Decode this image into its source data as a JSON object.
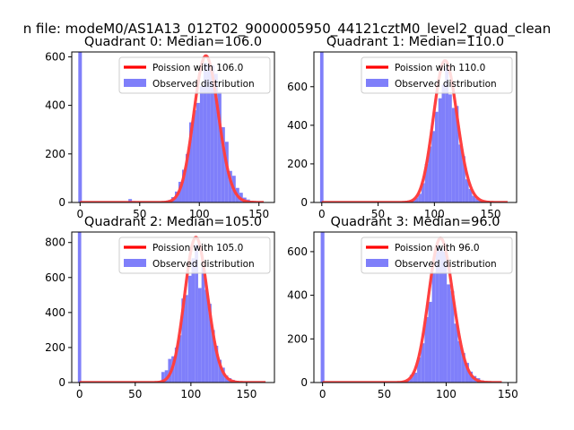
{
  "suptitle": "n file: modeM0/AS1A13_012T02_9000005950_44121cztM0_level2_quad_clean",
  "colors": {
    "poisson": "#ff0000",
    "observed": "#7f7ffa",
    "axis": "#000000",
    "background": "#ffffff"
  },
  "chart_data": [
    {
      "type": "bar",
      "title": "Quadrant 0: Median=106.0",
      "median": 106.0,
      "xlim": [
        -7,
        163
      ],
      "ylim": [
        0,
        620
      ],
      "xticks": [
        0,
        50,
        100,
        150
      ],
      "xtick_labels": [
        "0",
        "50",
        "100",
        "150"
      ],
      "yticks": [
        0,
        200,
        400,
        600
      ],
      "ytick_labels": [
        "0",
        "200",
        "400",
        "600"
      ],
      "legend": [
        "Poission with 106.0",
        "Observed distribution"
      ],
      "legend_position": "top-right",
      "observed": {
        "bin_width": 3,
        "bins": [
          {
            "x": 0,
            "value": 620
          },
          {
            "x": 39,
            "value": 4
          },
          {
            "x": 42,
            "value": 14
          },
          {
            "x": 45,
            "value": 6
          },
          {
            "x": 57,
            "value": 3
          },
          {
            "x": 60,
            "value": 2
          },
          {
            "x": 63,
            "value": 3
          },
          {
            "x": 66,
            "value": 3
          },
          {
            "x": 69,
            "value": 4
          },
          {
            "x": 72,
            "value": 6
          },
          {
            "x": 75,
            "value": 10
          },
          {
            "x": 78,
            "value": 22
          },
          {
            "x": 81,
            "value": 45
          },
          {
            "x": 84,
            "value": 85
          },
          {
            "x": 87,
            "value": 135
          },
          {
            "x": 90,
            "value": 200
          },
          {
            "x": 93,
            "value": 330
          },
          {
            "x": 96,
            "value": 380
          },
          {
            "x": 99,
            "value": 410
          },
          {
            "x": 102,
            "value": 480
          },
          {
            "x": 105,
            "value": 575
          },
          {
            "x": 108,
            "value": 570
          },
          {
            "x": 111,
            "value": 565
          },
          {
            "x": 114,
            "value": 530
          },
          {
            "x": 117,
            "value": 455
          },
          {
            "x": 120,
            "value": 310
          },
          {
            "x": 123,
            "value": 250
          },
          {
            "x": 126,
            "value": 130
          },
          {
            "x": 129,
            "value": 110
          },
          {
            "x": 132,
            "value": 60
          },
          {
            "x": 135,
            "value": 40
          },
          {
            "x": 138,
            "value": 20
          },
          {
            "x": 141,
            "value": 12
          },
          {
            "x": 144,
            "value": 6
          },
          {
            "x": 147,
            "value": 3
          }
        ]
      },
      "poisson": {
        "mean": 106.0,
        "x_range": [
          0,
          154
        ]
      }
    },
    {
      "type": "bar",
      "title": "Quadrant 1: Median=110.0",
      "median": 110.0,
      "xlim": [
        -7,
        173
      ],
      "ylim": [
        0,
        780
      ],
      "xticks": [
        0,
        50,
        100,
        150
      ],
      "xtick_labels": [
        "0",
        "50",
        "100",
        "150"
      ],
      "yticks": [
        0,
        200,
        400,
        600
      ],
      "ytick_labels": [
        "0",
        "200",
        "400",
        "600"
      ],
      "legend": [
        "Poission with 110.0",
        "Observed distribution"
      ],
      "legend_position": "top-right",
      "observed": {
        "bin_width": 3,
        "bins": [
          {
            "x": 0,
            "value": 780
          },
          {
            "x": 66,
            "value": 3
          },
          {
            "x": 69,
            "value": 4
          },
          {
            "x": 72,
            "value": 5
          },
          {
            "x": 75,
            "value": 8
          },
          {
            "x": 78,
            "value": 10
          },
          {
            "x": 81,
            "value": 15
          },
          {
            "x": 84,
            "value": 25
          },
          {
            "x": 87,
            "value": 45
          },
          {
            "x": 90,
            "value": 100
          },
          {
            "x": 93,
            "value": 200
          },
          {
            "x": 96,
            "value": 290
          },
          {
            "x": 99,
            "value": 370
          },
          {
            "x": 102,
            "value": 470
          },
          {
            "x": 105,
            "value": 540
          },
          {
            "x": 108,
            "value": 610
          },
          {
            "x": 111,
            "value": 700
          },
          {
            "x": 114,
            "value": 560
          },
          {
            "x": 117,
            "value": 490
          },
          {
            "x": 120,
            "value": 500
          },
          {
            "x": 123,
            "value": 300
          },
          {
            "x": 126,
            "value": 240
          },
          {
            "x": 129,
            "value": 120
          },
          {
            "x": 132,
            "value": 70
          },
          {
            "x": 135,
            "value": 35
          },
          {
            "x": 138,
            "value": 20
          },
          {
            "x": 141,
            "value": 15
          },
          {
            "x": 144,
            "value": 10
          },
          {
            "x": 147,
            "value": 6
          },
          {
            "x": 150,
            "value": 3
          }
        ]
      },
      "poisson": {
        "mean": 110.0,
        "x_range": [
          0,
          165
        ]
      }
    },
    {
      "type": "bar",
      "title": "Quadrant 2: Median=105.0",
      "median": 105.0,
      "xlim": [
        -7,
        175
      ],
      "ylim": [
        0,
        860
      ],
      "xticks": [
        0,
        50,
        100,
        150
      ],
      "xtick_labels": [
        "0",
        "50",
        "100",
        "150"
      ],
      "yticks": [
        0,
        200,
        400,
        600,
        800
      ],
      "ytick_labels": [
        "0",
        "200",
        "400",
        "600",
        "800"
      ],
      "legend": [
        "Poission with 105.0",
        "Observed distribution"
      ],
      "legend_position": "top-right",
      "observed": {
        "bin_width": 3,
        "bins": [
          {
            "x": 0,
            "value": 860
          },
          {
            "x": 66,
            "value": 3
          },
          {
            "x": 69,
            "value": 6
          },
          {
            "x": 72,
            "value": 8
          },
          {
            "x": 75,
            "value": 60
          },
          {
            "x": 78,
            "value": 70
          },
          {
            "x": 81,
            "value": 135
          },
          {
            "x": 84,
            "value": 150
          },
          {
            "x": 87,
            "value": 200
          },
          {
            "x": 90,
            "value": 270
          },
          {
            "x": 93,
            "value": 480
          },
          {
            "x": 96,
            "value": 500
          },
          {
            "x": 99,
            "value": 610
          },
          {
            "x": 102,
            "value": 710
          },
          {
            "x": 105,
            "value": 790
          },
          {
            "x": 108,
            "value": 540
          },
          {
            "x": 111,
            "value": 660
          },
          {
            "x": 114,
            "value": 530
          },
          {
            "x": 117,
            "value": 450
          },
          {
            "x": 120,
            "value": 300
          },
          {
            "x": 123,
            "value": 210
          },
          {
            "x": 126,
            "value": 130
          },
          {
            "x": 129,
            "value": 85
          },
          {
            "x": 132,
            "value": 40
          },
          {
            "x": 135,
            "value": 25
          },
          {
            "x": 138,
            "value": 15
          },
          {
            "x": 141,
            "value": 8
          },
          {
            "x": 144,
            "value": 5
          }
        ]
      },
      "poisson": {
        "mean": 105.0,
        "x_range": [
          0,
          167
        ]
      }
    },
    {
      "type": "bar",
      "title": "Quadrant 3: Median=96.0",
      "median": 96.0,
      "xlim": [
        -7,
        157
      ],
      "ylim": [
        0,
        690
      ],
      "xticks": [
        0,
        50,
        100,
        150
      ],
      "xtick_labels": [
        "0",
        "50",
        "100",
        "150"
      ],
      "yticks": [
        0,
        200,
        400,
        600
      ],
      "ytick_labels": [
        "0",
        "200",
        "400",
        "600"
      ],
      "legend": [
        "Poission with 96.0",
        "Observed distribution"
      ],
      "legend_position": "top-right",
      "observed": {
        "bin_width": 3,
        "bins": [
          {
            "x": 0,
            "value": 690
          },
          {
            "x": 54,
            "value": 2
          },
          {
            "x": 57,
            "value": 3
          },
          {
            "x": 60,
            "value": 4
          },
          {
            "x": 63,
            "value": 6
          },
          {
            "x": 66,
            "value": 8
          },
          {
            "x": 69,
            "value": 15
          },
          {
            "x": 72,
            "value": 35
          },
          {
            "x": 75,
            "value": 45
          },
          {
            "x": 78,
            "value": 115
          },
          {
            "x": 81,
            "value": 180
          },
          {
            "x": 84,
            "value": 300
          },
          {
            "x": 87,
            "value": 370
          },
          {
            "x": 90,
            "value": 500
          },
          {
            "x": 93,
            "value": 630
          },
          {
            "x": 96,
            "value": 610
          },
          {
            "x": 99,
            "value": 600
          },
          {
            "x": 102,
            "value": 450
          },
          {
            "x": 105,
            "value": 420
          },
          {
            "x": 108,
            "value": 270
          },
          {
            "x": 111,
            "value": 190
          },
          {
            "x": 114,
            "value": 135
          },
          {
            "x": 117,
            "value": 90
          },
          {
            "x": 120,
            "value": 50
          },
          {
            "x": 123,
            "value": 30
          },
          {
            "x": 126,
            "value": 20
          },
          {
            "x": 129,
            "value": 10
          },
          {
            "x": 132,
            "value": 6
          },
          {
            "x": 135,
            "value": 3
          }
        ]
      },
      "poisson": {
        "mean": 96.0,
        "x_range": [
          0,
          145
        ]
      }
    }
  ]
}
